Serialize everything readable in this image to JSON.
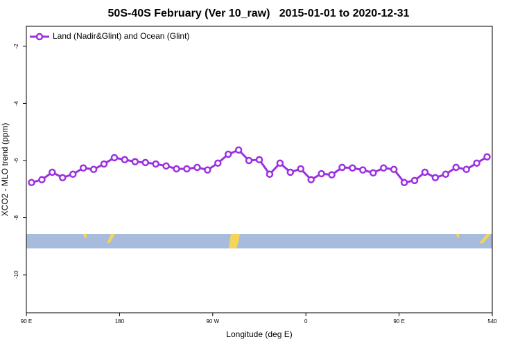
{
  "chart_data": {
    "type": "line",
    "title": "50S-40S February (Ver 10_raw)   2015-01-01 to 2020-12-31",
    "x_label": "Longitude (deg E)",
    "y_label": "XCO2 - MLO trend (ppm)",
    "x": [
      95,
      105,
      115,
      125,
      135,
      145,
      155,
      165,
      175,
      185,
      195,
      205,
      215,
      225,
      235,
      245,
      255,
      265,
      275,
      285,
      295,
      305,
      315,
      325,
      335,
      345,
      355,
      365,
      375,
      385,
      395,
      405,
      415,
      425,
      435,
      445,
      455,
      465,
      475,
      485,
      495,
      505,
      515,
      525,
      535
    ],
    "series": [
      {
        "name": "Land (Nadir&Glint) and Ocean (Glint)",
        "color": "#9b30e0",
        "values": [
          -6.77,
          -6.67,
          -6.41,
          -6.6,
          -6.48,
          -6.26,
          -6.31,
          -6.12,
          -5.9,
          -5.97,
          -6.04,
          -6.07,
          -6.12,
          -6.19,
          -6.29,
          -6.29,
          -6.24,
          -6.33,
          -6.09,
          -5.78,
          -5.63,
          -6.0,
          -5.97,
          -6.48,
          -6.09,
          -6.41,
          -6.29,
          -6.67,
          -6.46,
          -6.5,
          -6.24,
          -6.26,
          -6.33,
          -6.43,
          -6.26,
          -6.31,
          -6.77,
          -6.7,
          -6.41,
          -6.6,
          -6.48,
          -6.24,
          -6.31,
          -6.09,
          -5.87
        ]
      }
    ],
    "xlim": [
      90,
      540
    ],
    "xticks": [
      {
        "value": 90,
        "label": "90 E"
      },
      180,
      {
        "value": 270,
        "label": "90 W"
      },
      {
        "value": 360,
        "label": "0"
      },
      {
        "value": 450,
        "label": "90 E"
      },
      540
    ],
    "ylim": [
      -11.33,
      -1.3
    ],
    "yticks": [
      -10,
      -8,
      -6,
      -4,
      -2
    ],
    "legend": "top-left"
  }
}
